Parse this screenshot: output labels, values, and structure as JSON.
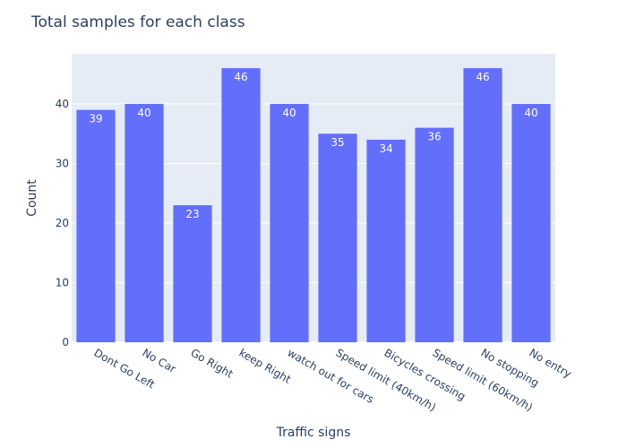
{
  "chart_data": {
    "type": "bar",
    "title": "Total samples for each class",
    "xlabel": "Traffic signs",
    "ylabel": "Count",
    "categories": [
      "Dont Go Left",
      "No Car",
      "Go Right",
      "keep Right",
      "watch out for cars",
      "Speed limit (40km/h)",
      "Bicycles crossing",
      "Speed limit (60km/h)",
      "No stopping",
      "No entry"
    ],
    "values": [
      39,
      40,
      23,
      46,
      40,
      35,
      34,
      36,
      46,
      40
    ],
    "ylim": [
      0,
      48.42
    ],
    "yticks": [
      0,
      10,
      20,
      30,
      40
    ],
    "grid": true,
    "colors": {
      "bar": "#636efa",
      "plot_bg": "#e5ecf6",
      "grid": "#ffffff",
      "text": "#2a3f5f"
    }
  }
}
